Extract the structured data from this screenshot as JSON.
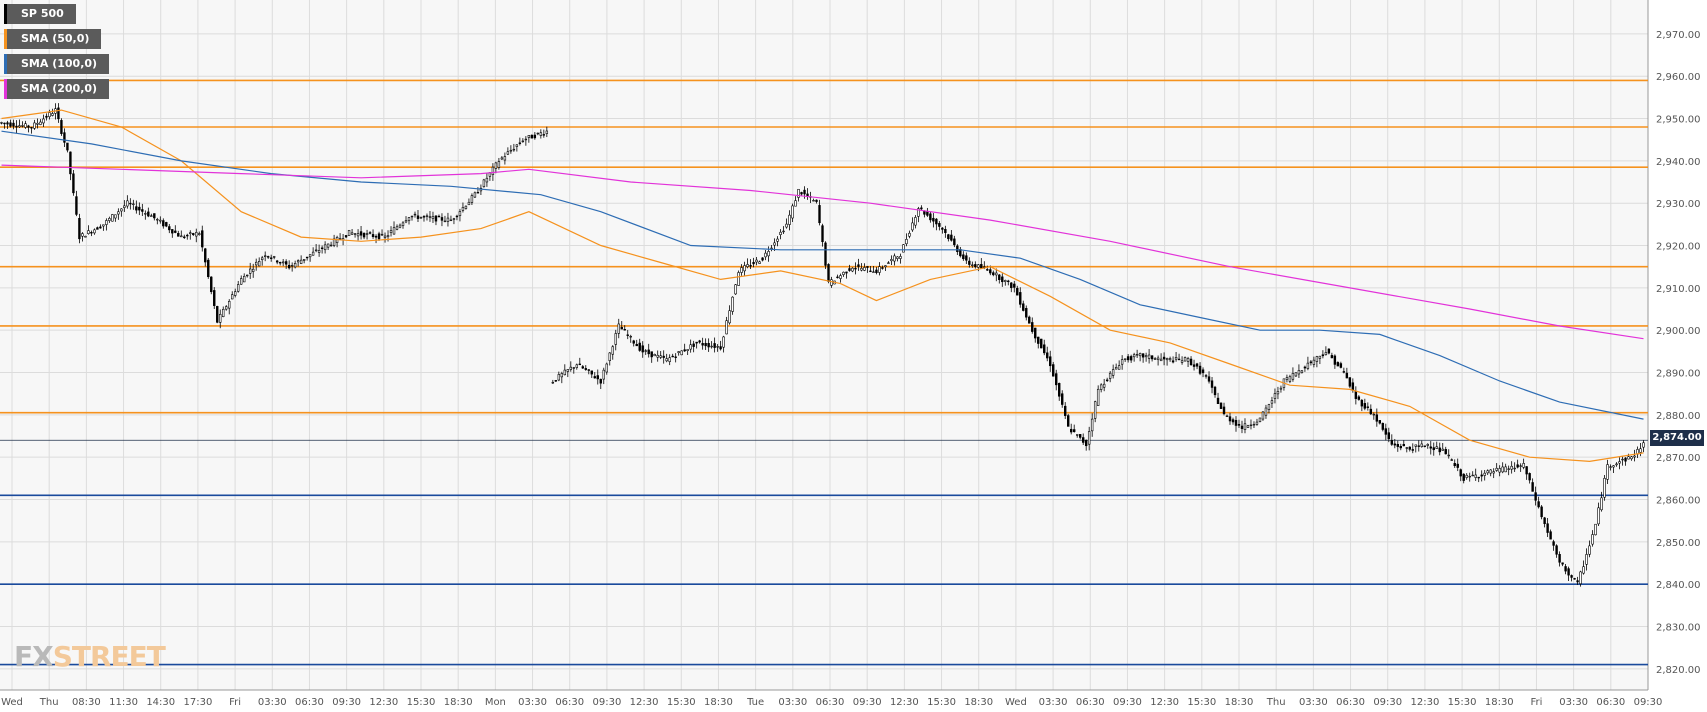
{
  "chart_data": {
    "type": "candlestick",
    "symbol": "SP 500",
    "legend": [
      {
        "label": "SP 500",
        "color": "#000000"
      },
      {
        "label": "SMA (50,0)",
        "color": "#f5921e"
      },
      {
        "label": "SMA (100,0)",
        "color": "#2e6db4"
      },
      {
        "label": "SMA (200,0)",
        "color": "#e233d9"
      }
    ],
    "ylim": [
      2815,
      2978
    ],
    "yticks": [
      2820,
      2830,
      2840,
      2850,
      2860,
      2870,
      2880,
      2890,
      2900,
      2910,
      2920,
      2930,
      2940,
      2950,
      2960,
      2970
    ],
    "ytick_labels": [
      "2,820.00",
      "2,830.00",
      "2,840.00",
      "2,850.00",
      "2,860.00",
      "2,870.00",
      "2,880.00",
      "2,890.00",
      "2,900.00",
      "2,910.00",
      "2,920.00",
      "2,930.00",
      "2,940.00",
      "2,950.00",
      "2,960.00",
      "2,970.00"
    ],
    "xlabels": [
      "Wed",
      "Thu",
      "08:30",
      "11:30",
      "14:30",
      "17:30",
      "Fri",
      "03:30",
      "06:30",
      "09:30",
      "12:30",
      "15:30",
      "18:30",
      "Mon",
      "03:30",
      "06:30",
      "09:30",
      "12:30",
      "15:30",
      "18:30",
      "Tue",
      "03:30",
      "06:30",
      "09:30",
      "12:30",
      "15:30",
      "18:30",
      "Wed",
      "03:30",
      "06:30",
      "09:30",
      "12:30",
      "15:30",
      "18:30",
      "Thu",
      "03:30",
      "06:30",
      "09:30",
      "12:30",
      "15:30",
      "18:30",
      "Fri",
      "03:30",
      "06:30",
      "09:30"
    ],
    "current_price": 2874.0,
    "current_price_label": "2,874.00",
    "resistance_levels": [
      2959,
      2948,
      2938.5,
      2915,
      2901,
      2880.5
    ],
    "support_levels": [
      2861,
      2840,
      2821
    ],
    "resistance_color": "#f5921e",
    "support_color": "#1a4a9c",
    "price_anchors": [
      [
        0,
        2949
      ],
      [
        10,
        2948
      ],
      [
        18,
        2952
      ],
      [
        22,
        2942
      ],
      [
        26,
        2922
      ],
      [
        34,
        2925
      ],
      [
        42,
        2930
      ],
      [
        50,
        2927
      ],
      [
        60,
        2922
      ],
      [
        66,
        2923
      ],
      [
        72,
        2902
      ],
      [
        80,
        2912
      ],
      [
        88,
        2918
      ],
      [
        96,
        2915
      ],
      [
        106,
        2919
      ],
      [
        116,
        2923
      ],
      [
        128,
        2922
      ],
      [
        136,
        2927
      ],
      [
        150,
        2926
      ],
      [
        158,
        2932
      ],
      [
        166,
        2940
      ],
      [
        174,
        2945
      ],
      [
        182,
        2947
      ],
      [
        184,
        2888
      ],
      [
        192,
        2892
      ],
      [
        200,
        2888
      ],
      [
        206,
        2901
      ],
      [
        214,
        2895
      ],
      [
        222,
        2893
      ],
      [
        232,
        2897
      ],
      [
        240,
        2896
      ],
      [
        246,
        2914
      ],
      [
        254,
        2917
      ],
      [
        262,
        2925
      ],
      [
        266,
        2933
      ],
      [
        272,
        2930
      ],
      [
        276,
        2911
      ],
      [
        284,
        2915
      ],
      [
        292,
        2914
      ],
      [
        300,
        2918
      ],
      [
        306,
        2929
      ],
      [
        314,
        2924
      ],
      [
        322,
        2916
      ],
      [
        330,
        2914
      ],
      [
        338,
        2910
      ],
      [
        344,
        2900
      ],
      [
        350,
        2892
      ],
      [
        356,
        2877
      ],
      [
        362,
        2873
      ],
      [
        366,
        2886
      ],
      [
        374,
        2893
      ],
      [
        380,
        2894
      ],
      [
        388,
        2893
      ],
      [
        396,
        2893
      ],
      [
        402,
        2889
      ],
      [
        408,
        2880
      ],
      [
        414,
        2877
      ],
      [
        420,
        2879
      ],
      [
        428,
        2888
      ],
      [
        436,
        2892
      ],
      [
        442,
        2895
      ],
      [
        448,
        2890
      ],
      [
        452,
        2884
      ],
      [
        458,
        2880
      ],
      [
        464,
        2873
      ],
      [
        470,
        2872
      ],
      [
        476,
        2873
      ],
      [
        482,
        2871
      ],
      [
        488,
        2865
      ],
      [
        494,
        2866
      ],
      [
        500,
        2867
      ],
      [
        508,
        2868
      ],
      [
        514,
        2856
      ],
      [
        520,
        2845
      ],
      [
        526,
        2840
      ],
      [
        532,
        2854
      ],
      [
        536,
        2868
      ],
      [
        544,
        2870
      ],
      [
        548,
        2873
      ]
    ],
    "sma50": [
      [
        0,
        2950
      ],
      [
        20,
        2952
      ],
      [
        40,
        2948
      ],
      [
        60,
        2940
      ],
      [
        80,
        2928
      ],
      [
        100,
        2922
      ],
      [
        120,
        2921
      ],
      [
        140,
        2922
      ],
      [
        160,
        2924
      ],
      [
        176,
        2928
      ],
      [
        200,
        2920
      ],
      [
        220,
        2916
      ],
      [
        240,
        2912
      ],
      [
        260,
        2914
      ],
      [
        280,
        2911
      ],
      [
        292,
        2907
      ],
      [
        310,
        2912
      ],
      [
        330,
        2915
      ],
      [
        350,
        2908
      ],
      [
        370,
        2900
      ],
      [
        390,
        2897
      ],
      [
        410,
        2892
      ],
      [
        430,
        2887
      ],
      [
        450,
        2886
      ],
      [
        470,
        2882
      ],
      [
        490,
        2874
      ],
      [
        510,
        2870
      ],
      [
        530,
        2869
      ],
      [
        548,
        2871
      ]
    ],
    "sma100": [
      [
        0,
        2947
      ],
      [
        30,
        2944
      ],
      [
        60,
        2940
      ],
      [
        90,
        2937
      ],
      [
        120,
        2935
      ],
      [
        150,
        2934
      ],
      [
        180,
        2932
      ],
      [
        200,
        2928
      ],
      [
        230,
        2920
      ],
      [
        260,
        2919
      ],
      [
        290,
        2919
      ],
      [
        320,
        2919
      ],
      [
        340,
        2917
      ],
      [
        360,
        2912
      ],
      [
        380,
        2906
      ],
      [
        400,
        2903
      ],
      [
        420,
        2900
      ],
      [
        440,
        2900
      ],
      [
        460,
        2899
      ],
      [
        480,
        2894
      ],
      [
        500,
        2888
      ],
      [
        520,
        2883
      ],
      [
        548,
        2879
      ]
    ],
    "sma200": [
      [
        0,
        2939
      ],
      [
        40,
        2938
      ],
      [
        80,
        2937
      ],
      [
        120,
        2936
      ],
      [
        160,
        2937
      ],
      [
        176,
        2938
      ],
      [
        210,
        2935
      ],
      [
        250,
        2933
      ],
      [
        290,
        2930
      ],
      [
        330,
        2926
      ],
      [
        370,
        2921
      ],
      [
        410,
        2915
      ],
      [
        450,
        2910
      ],
      [
        490,
        2905
      ],
      [
        520,
        2901
      ],
      [
        548,
        2898
      ]
    ]
  },
  "watermark": {
    "prefix": "FX",
    "suffix": "STREET"
  }
}
